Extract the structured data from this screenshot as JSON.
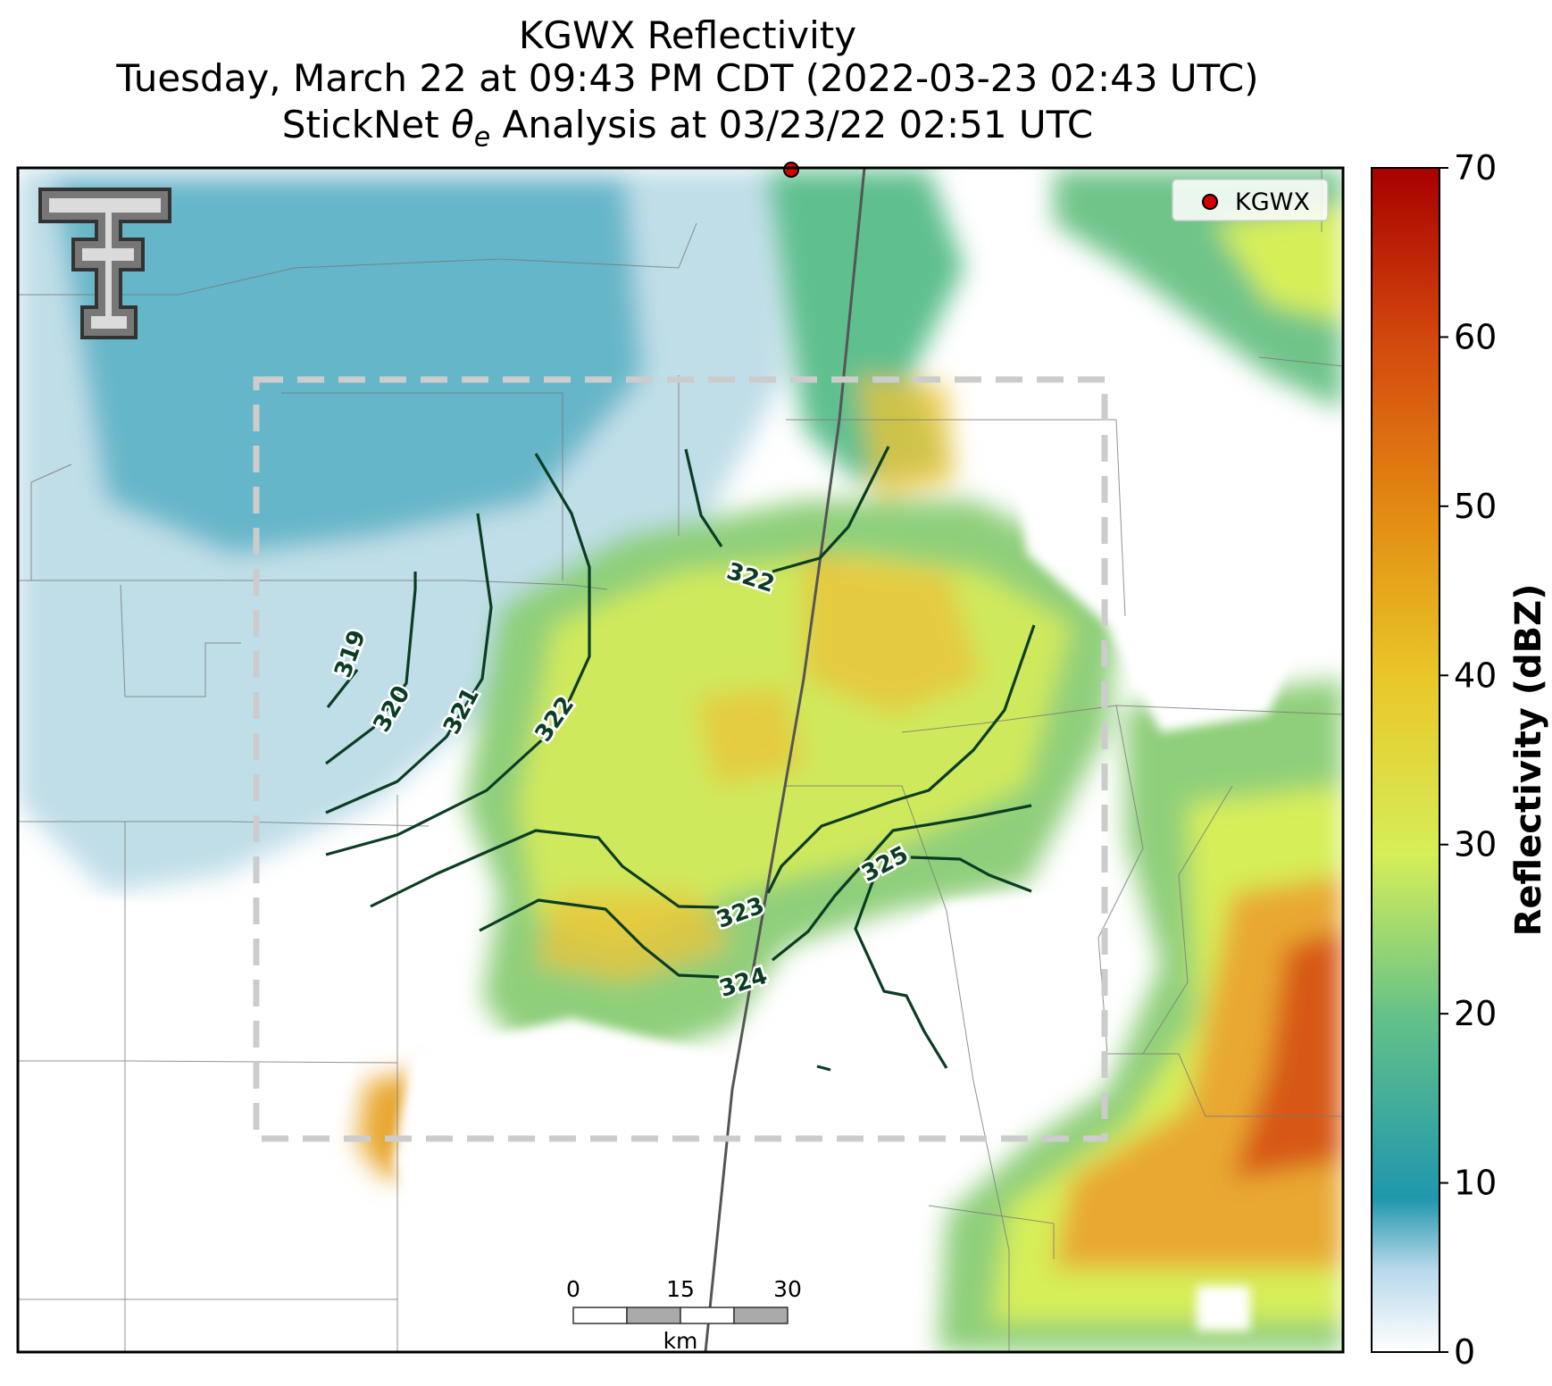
{
  "title": {
    "line1": "KGWX Reflectivity",
    "line2": "Tuesday, March 22 at 09:43 PM CDT (2022-03-23 02:43 UTC)",
    "line3_prefix": "StickNet ",
    "line3_theta": "θ",
    "line3_sub": "e",
    "line3_suffix": " Analysis at 03/23/22 02:51 UTC"
  },
  "legend": {
    "label": "KGWX",
    "marker_color": "#d40000"
  },
  "colorbar": {
    "label": "Reflectivity (dBZ)",
    "ticks": [
      "0",
      "10",
      "20",
      "30",
      "40",
      "50",
      "60",
      "70"
    ],
    "range": [
      0,
      70
    ],
    "colors": [
      "#ffffff",
      "#b8d8ea",
      "#1f97ad",
      "#62c08a",
      "#d6ee58",
      "#e9c728",
      "#e38a12",
      "#d44a0e",
      "#a80000"
    ]
  },
  "contours": [
    {
      "label": "319"
    },
    {
      "label": "320"
    },
    {
      "label": "321"
    },
    {
      "label": "322"
    },
    {
      "label": "322"
    },
    {
      "label": "323"
    },
    {
      "label": "324"
    },
    {
      "label": "325"
    }
  ],
  "scale_bar": {
    "ticks": [
      "0",
      "15",
      "30"
    ],
    "unit": "km"
  },
  "colors": {
    "contour": "#0b3d24",
    "analysis_box": "#cccccc",
    "radar_site": "#d40000"
  }
}
